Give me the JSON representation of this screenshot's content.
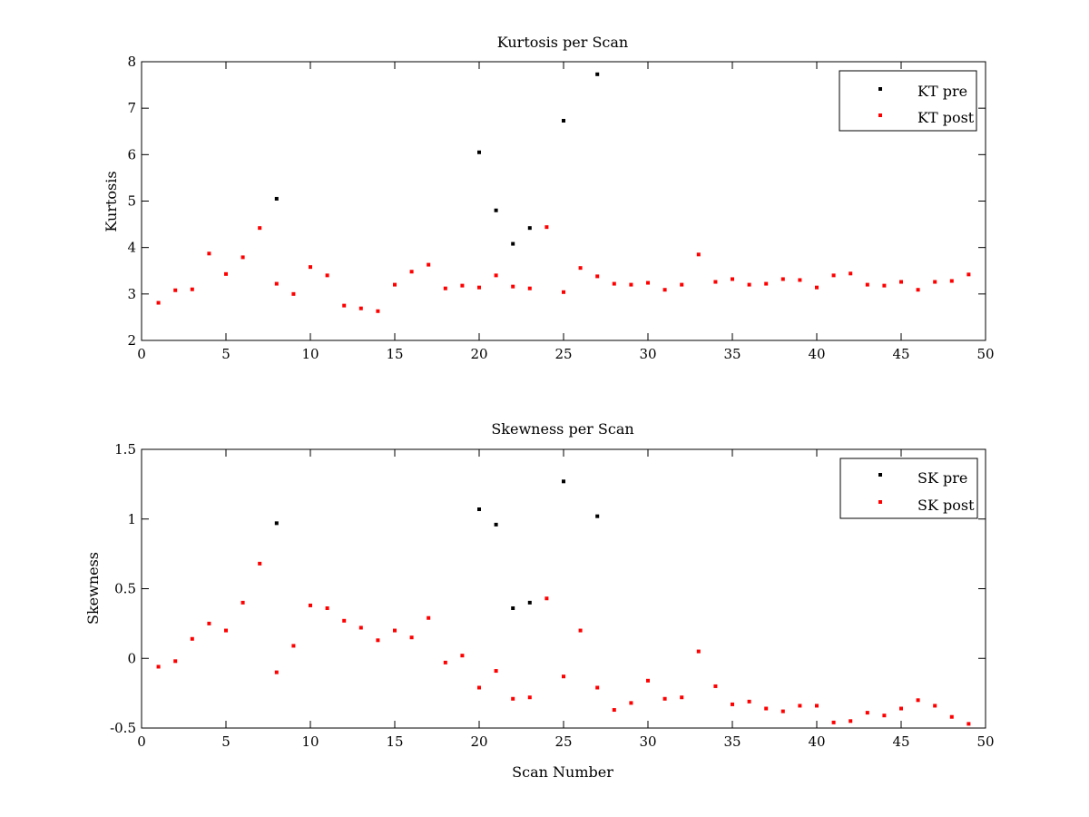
{
  "colors": {
    "pre": "#000000",
    "post": "#ff0000",
    "axes": "#000000",
    "background": "#ffffff"
  },
  "chart_data": [
    {
      "type": "scatter",
      "title": "Kurtosis per Scan",
      "xlabel": "",
      "ylabel": "Kurtosis",
      "xlim": [
        0,
        50
      ],
      "ylim": [
        2,
        8
      ],
      "xticks": [
        "0",
        "5",
        "10",
        "15",
        "20",
        "25",
        "30",
        "35",
        "40",
        "45",
        "50"
      ],
      "yticks": [
        "2",
        "3",
        "4",
        "5",
        "6",
        "7",
        "8"
      ],
      "grid": false,
      "legend_position": "top-right",
      "series": [
        {
          "name": "KT pre",
          "color_key": "pre",
          "points": [
            [
              8,
              5.05
            ],
            [
              20,
              6.05
            ],
            [
              21,
              4.8
            ],
            [
              22,
              4.08
            ],
            [
              23,
              4.42
            ],
            [
              25,
              6.73
            ],
            [
              27,
              7.73
            ]
          ]
        },
        {
          "name": "KT post",
          "color_key": "post",
          "points": [
            [
              1,
              2.81
            ],
            [
              2,
              3.08
            ],
            [
              3,
              3.1
            ],
            [
              4,
              3.87
            ],
            [
              5,
              3.43
            ],
            [
              6,
              3.79
            ],
            [
              7,
              4.42
            ],
            [
              8,
              3.22
            ],
            [
              9,
              3.0
            ],
            [
              10,
              3.58
            ],
            [
              11,
              3.4
            ],
            [
              12,
              2.75
            ],
            [
              13,
              2.69
            ],
            [
              14,
              2.63
            ],
            [
              15,
              3.2
            ],
            [
              16,
              3.48
            ],
            [
              17,
              3.63
            ],
            [
              18,
              3.12
            ],
            [
              19,
              3.18
            ],
            [
              20,
              3.14
            ],
            [
              21,
              3.4
            ],
            [
              22,
              3.16
            ],
            [
              23,
              3.12
            ],
            [
              24,
              4.44
            ],
            [
              25,
              3.04
            ],
            [
              26,
              3.56
            ],
            [
              27,
              3.38
            ],
            [
              28,
              3.22
            ],
            [
              29,
              3.2
            ],
            [
              30,
              3.24
            ],
            [
              31,
              3.09
            ],
            [
              32,
              3.2
            ],
            [
              33,
              3.85
            ],
            [
              34,
              3.26
            ],
            [
              35,
              3.32
            ],
            [
              36,
              3.2
            ],
            [
              37,
              3.22
            ],
            [
              38,
              3.32
            ],
            [
              39,
              3.3
            ],
            [
              40,
              3.14
            ],
            [
              41,
              3.4
            ],
            [
              42,
              3.44
            ],
            [
              43,
              3.2
            ],
            [
              44,
              3.18
            ],
            [
              45,
              3.26
            ],
            [
              46,
              3.09
            ],
            [
              47,
              3.26
            ],
            [
              48,
              3.28
            ],
            [
              49,
              3.42
            ]
          ]
        }
      ]
    },
    {
      "type": "scatter",
      "title": "Skewness per Scan",
      "xlabel": "Scan Number",
      "ylabel": "Skewness",
      "xlim": [
        0,
        50
      ],
      "ylim": [
        -0.5,
        1.5
      ],
      "xticks": [
        "0",
        "5",
        "10",
        "15",
        "20",
        "25",
        "30",
        "35",
        "40",
        "45",
        "50"
      ],
      "yticks": [
        "-0.5",
        "0",
        "0.5",
        "1",
        "1.5"
      ],
      "grid": false,
      "legend_position": "top-right",
      "series": [
        {
          "name": "SK pre",
          "color_key": "pre",
          "points": [
            [
              8,
              0.97
            ],
            [
              20,
              1.07
            ],
            [
              21,
              0.96
            ],
            [
              22,
              0.36
            ],
            [
              23,
              0.4
            ],
            [
              25,
              1.27
            ],
            [
              27,
              1.02
            ]
          ]
        },
        {
          "name": "SK post",
          "color_key": "post",
          "points": [
            [
              1,
              -0.06
            ],
            [
              2,
              -0.02
            ],
            [
              3,
              0.14
            ],
            [
              4,
              0.25
            ],
            [
              5,
              0.2
            ],
            [
              6,
              0.4
            ],
            [
              7,
              0.68
            ],
            [
              8,
              -0.1
            ],
            [
              9,
              0.09
            ],
            [
              10,
              0.38
            ],
            [
              11,
              0.36
            ],
            [
              12,
              0.27
            ],
            [
              13,
              0.22
            ],
            [
              14,
              0.13
            ],
            [
              15,
              0.2
            ],
            [
              16,
              0.15
            ],
            [
              17,
              0.29
            ],
            [
              18,
              -0.03
            ],
            [
              19,
              0.02
            ],
            [
              20,
              -0.21
            ],
            [
              21,
              -0.09
            ],
            [
              22,
              -0.29
            ],
            [
              23,
              -0.28
            ],
            [
              24,
              0.43
            ],
            [
              25,
              -0.13
            ],
            [
              26,
              0.2
            ],
            [
              27,
              -0.21
            ],
            [
              28,
              -0.37
            ],
            [
              29,
              -0.32
            ],
            [
              30,
              -0.16
            ],
            [
              31,
              -0.29
            ],
            [
              32,
              -0.28
            ],
            [
              33,
              0.05
            ],
            [
              34,
              -0.2
            ],
            [
              35,
              -0.33
            ],
            [
              36,
              -0.31
            ],
            [
              37,
              -0.36
            ],
            [
              38,
              -0.38
            ],
            [
              39,
              -0.34
            ],
            [
              40,
              -0.34
            ],
            [
              41,
              -0.46
            ],
            [
              42,
              -0.45
            ],
            [
              43,
              -0.39
            ],
            [
              44,
              -0.41
            ],
            [
              45,
              -0.36
            ],
            [
              46,
              -0.3
            ],
            [
              47,
              -0.34
            ],
            [
              48,
              -0.42
            ],
            [
              49,
              -0.47
            ]
          ]
        }
      ]
    }
  ]
}
